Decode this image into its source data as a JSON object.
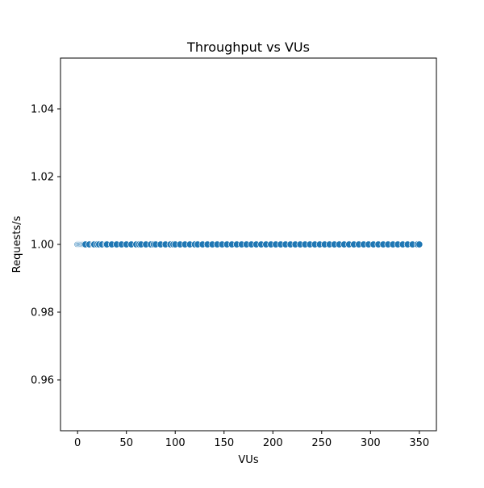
{
  "chart_data": {
    "type": "scatter",
    "title": "Throughput vs VUs",
    "xlabel": "VUs",
    "ylabel": "Requests/s",
    "xlim": [
      -17.5,
      367.5
    ],
    "ylim": [
      0.945,
      1.055
    ],
    "xticks": [
      0,
      50,
      100,
      150,
      200,
      250,
      300,
      350
    ],
    "yticks": [
      0.96,
      0.98,
      1.0,
      1.02,
      1.04
    ],
    "ytick_labels": [
      "0.96",
      "0.98",
      "1.00",
      "1.02",
      "1.04"
    ],
    "grid": false,
    "legend": "none",
    "marker_color": "#1f77b4",
    "marker_edge_color": "#ffffff",
    "x": [
      0,
      1,
      2,
      3,
      4,
      5,
      6,
      7,
      8,
      12,
      16,
      17,
      20,
      22,
      25,
      29,
      30,
      35,
      40,
      45,
      50,
      55,
      60,
      63,
      65,
      70,
      75,
      78,
      80,
      85,
      90,
      95,
      98,
      100,
      105,
      110,
      115,
      120,
      123,
      128,
      133,
      138,
      143,
      148,
      153,
      158,
      163,
      168,
      173,
      178,
      183,
      188,
      193,
      198,
      203,
      208,
      213,
      218,
      223,
      228,
      233,
      238,
      243,
      248,
      253,
      258,
      263,
      268,
      273,
      278,
      283,
      288,
      293,
      298,
      303,
      308,
      313,
      318,
      323,
      328,
      333,
      338,
      343,
      348,
      350
    ],
    "y": 1.0
  }
}
